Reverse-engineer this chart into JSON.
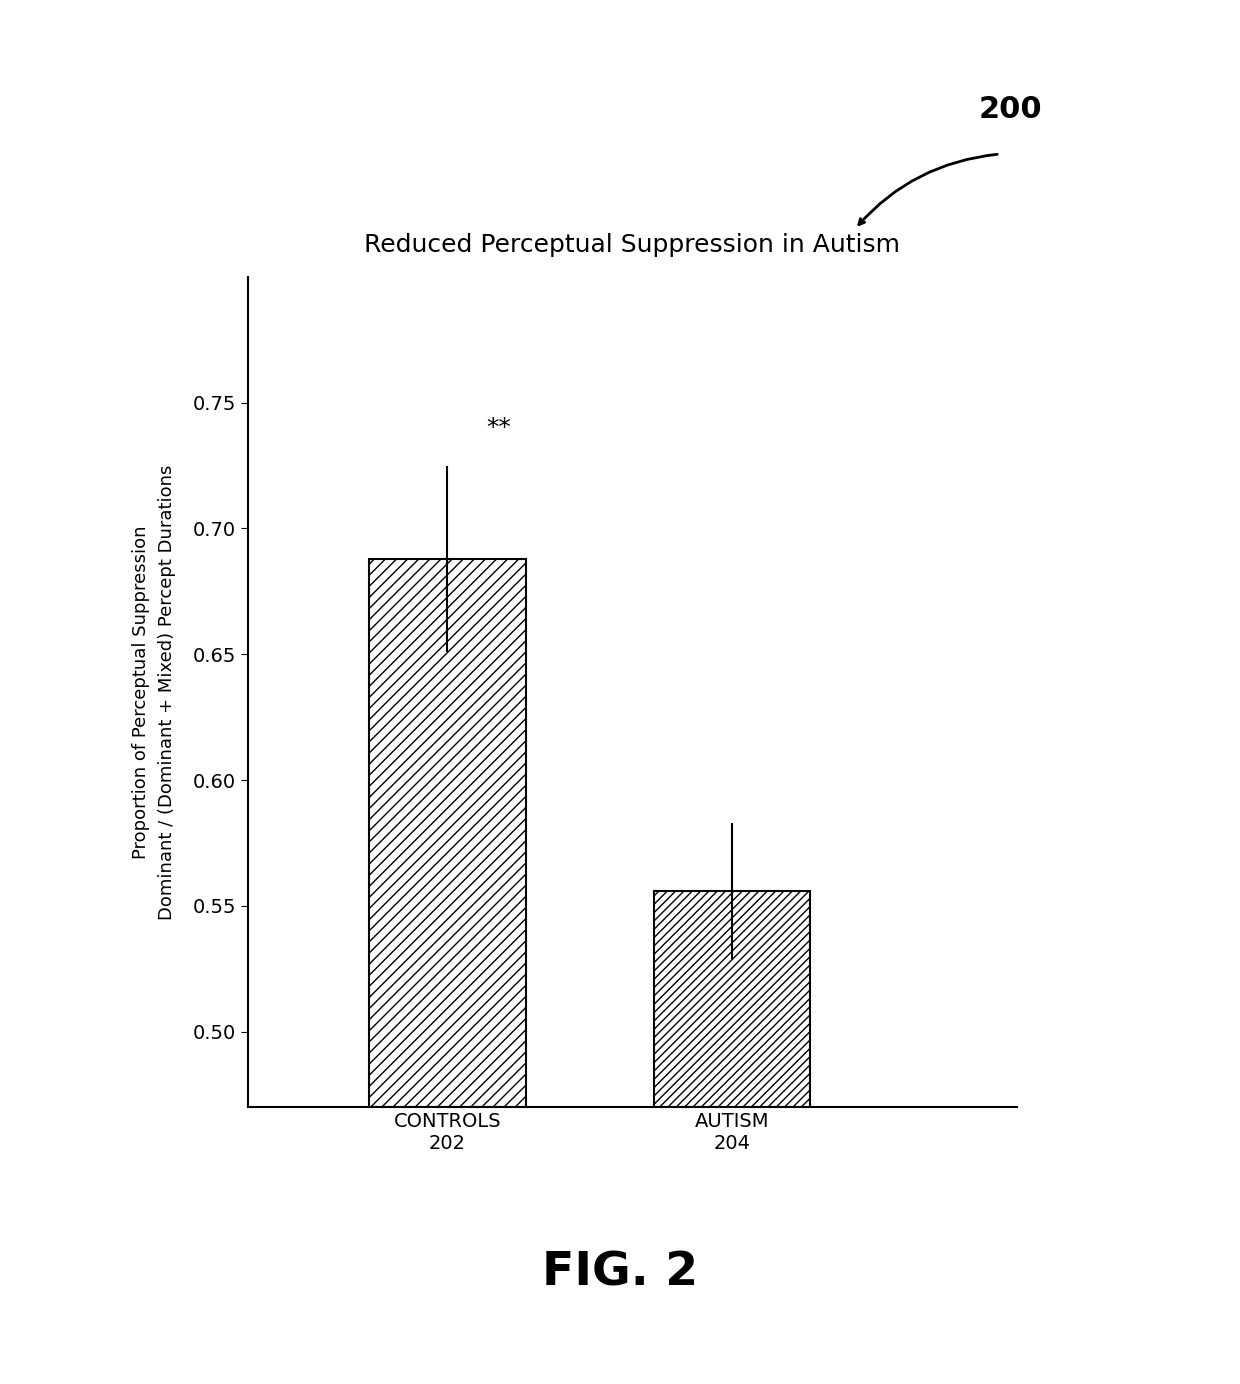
{
  "title": "Reduced Perceptual Suppression in Autism",
  "cat1": "CONTROLS\n202",
  "cat2": "AUTISM\n204",
  "values": [
    0.688,
    0.556
  ],
  "errors": [
    0.037,
    0.027
  ],
  "ylabel_line1": "Proportion of Perceptual Suppression",
  "ylabel_line2": "Dominant / (Dominant + Mixed) Percept Durations",
  "ylim_low": 0.47,
  "ylim_high": 0.8,
  "yticks": [
    0.5,
    0.55,
    0.6,
    0.65,
    0.7,
    0.75
  ],
  "significance_label": "**",
  "fig_label": "FIG. 2",
  "arrow_label": "200",
  "background_color": "#ffffff",
  "title_fontsize": 18,
  "ylabel_fontsize": 13,
  "tick_fontsize": 14,
  "cat_fontsize": 14,
  "sig_fontsize": 18,
  "fig_label_fontsize": 34,
  "bar_positions": [
    1,
    2
  ],
  "bar_width": 0.55,
  "xlim": [
    0.3,
    3.0
  ]
}
